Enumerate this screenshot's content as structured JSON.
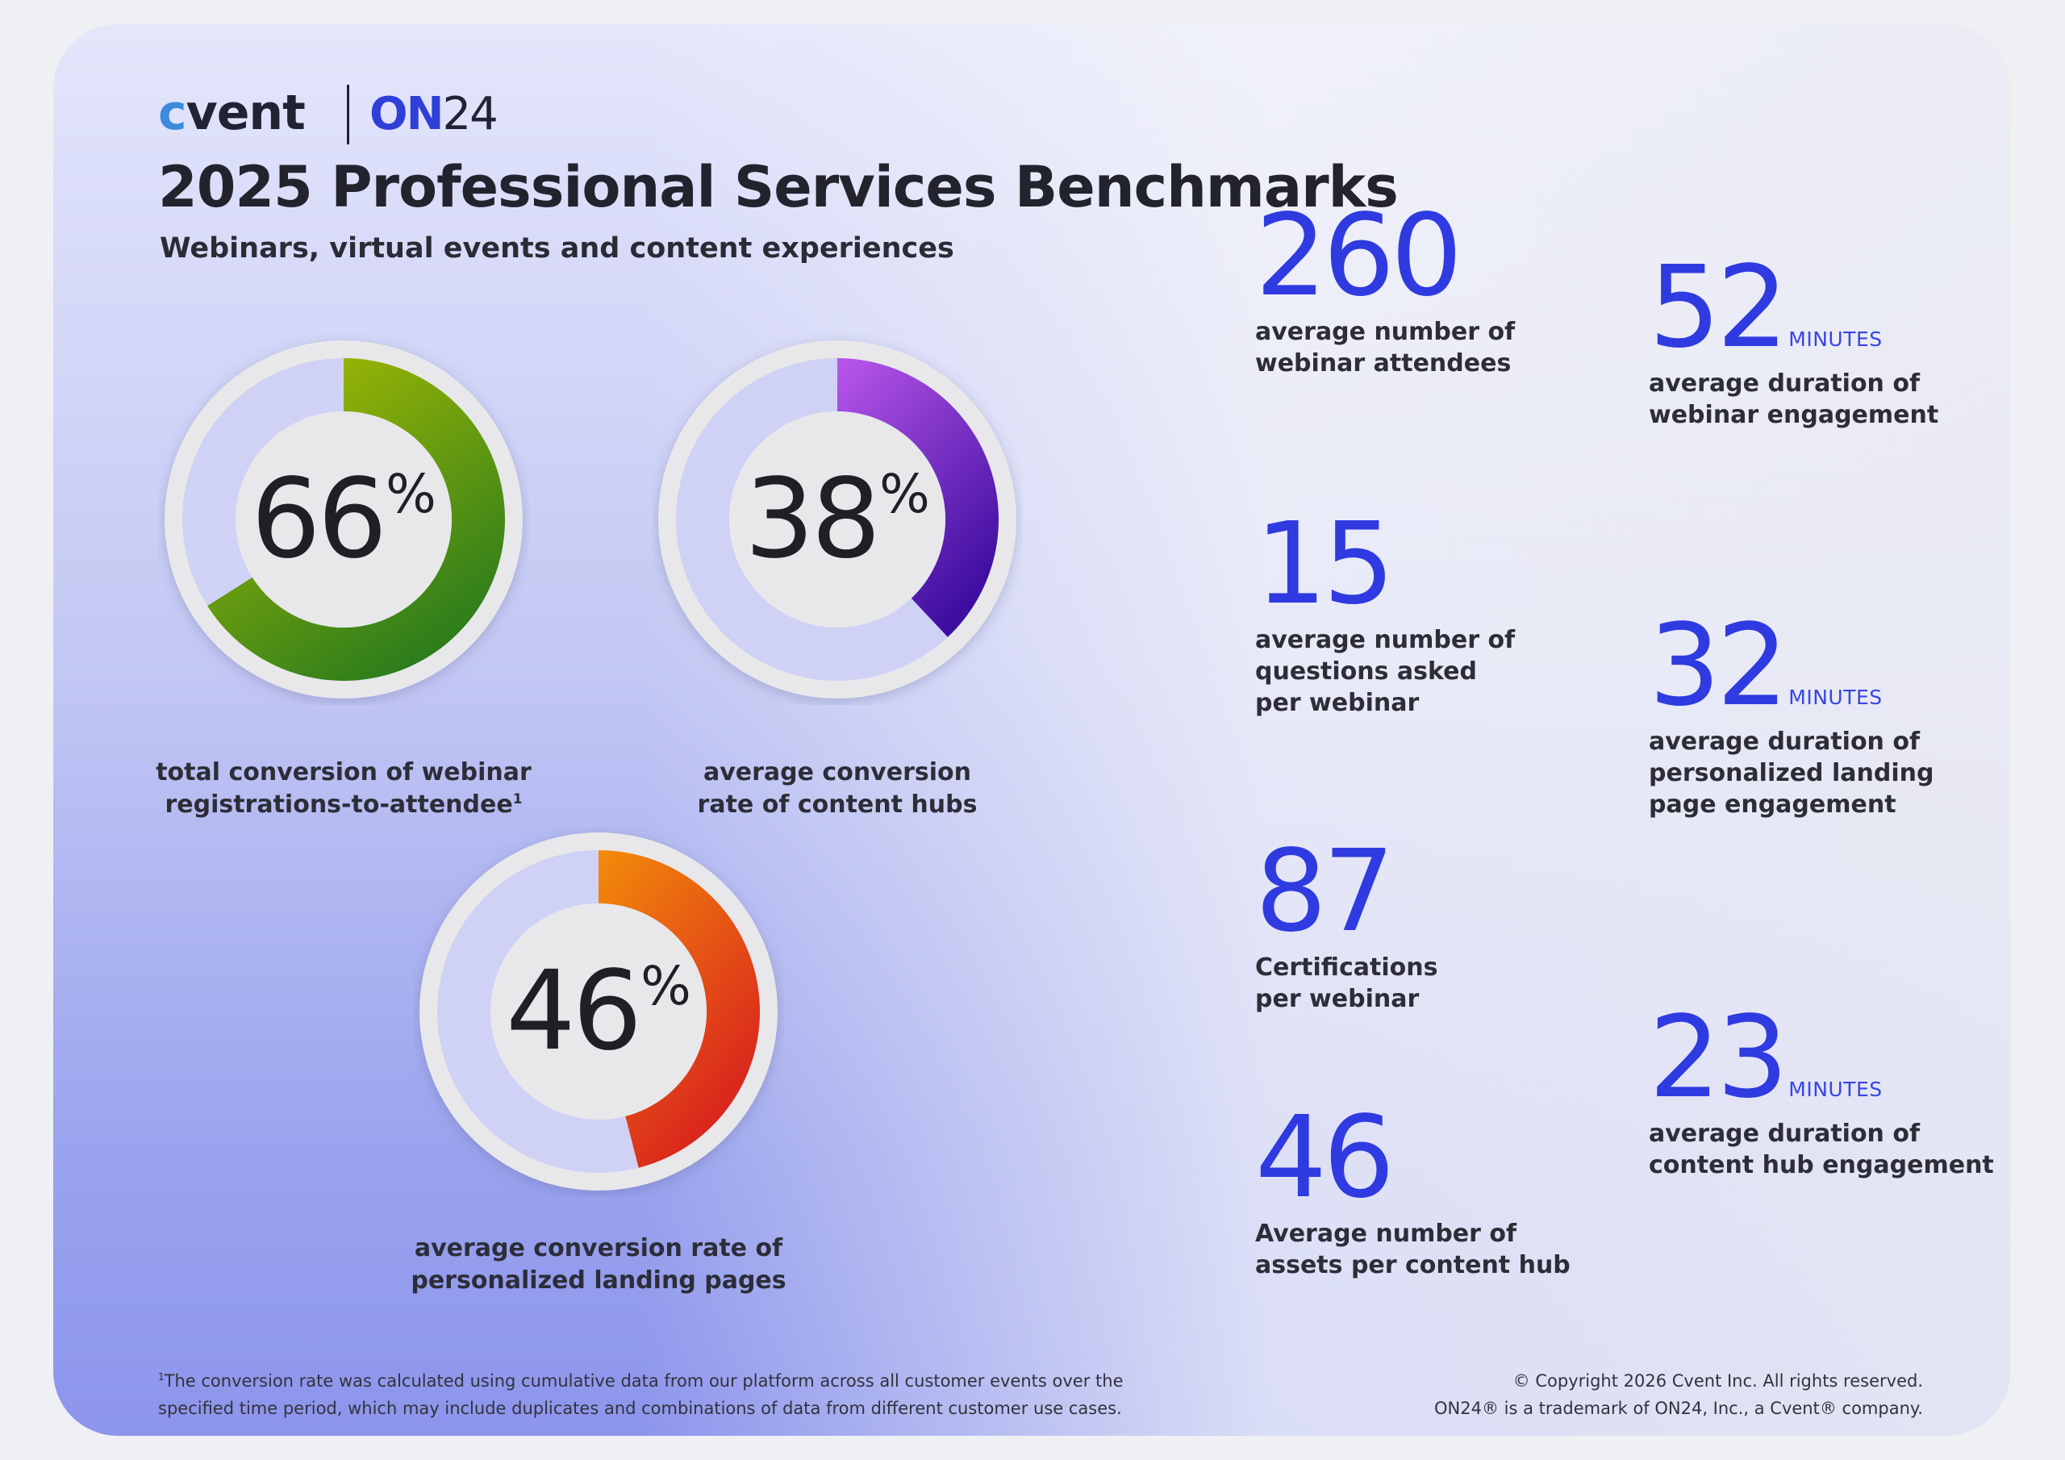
{
  "brand": {
    "cvent_logo": "cvent",
    "on24_logo_on": "ON",
    "on24_logo_num": "24"
  },
  "header": {
    "title": "2025 Professional Services Benchmarks",
    "subtitle": "Webinars, virtual events and content experiences"
  },
  "donuts": [
    {
      "value": "66",
      "unit": "%",
      "fraction": 0.66,
      "color_start": "#b0c000",
      "color_end": "#2d7d1c",
      "label_line1": "total conversion of webinar",
      "label_line2": "registrations-to-attendee",
      "label_sup": "1"
    },
    {
      "value": "38",
      "unit": "%",
      "fraction": 0.38,
      "color_start": "#b957ea",
      "color_end": "#3e0ea0",
      "label_line1": "average conversion",
      "label_line2": "rate of content hubs"
    },
    {
      "value": "46",
      "unit": "%",
      "fraction": 0.46,
      "color_start": "#f38c0a",
      "color_end": "#d8201e",
      "label_line1": "average conversion rate of",
      "label_line2": "personalized landing pages"
    }
  ],
  "stats_left": [
    {
      "value": "260",
      "lines": [
        "average number of",
        "webinar attendees"
      ]
    },
    {
      "value": "15",
      "lines": [
        "average number of",
        "questions asked",
        "per webinar"
      ]
    },
    {
      "value": "87",
      "lines": [
        "Certifications",
        "per webinar"
      ]
    },
    {
      "value": "46",
      "lines": [
        "Average number of",
        "assets per content hub"
      ]
    }
  ],
  "stats_right": [
    {
      "value": "52",
      "unit": "MINUTES",
      "lines": [
        "average duration of",
        "webinar engagement"
      ]
    },
    {
      "value": "32",
      "unit": "MINUTES",
      "lines": [
        "average duration of",
        "personalized landing",
        "page engagement"
      ]
    },
    {
      "value": "23",
      "unit": "MINUTES",
      "lines": [
        "average duration of",
        "content hub engagement"
      ]
    }
  ],
  "footnote": {
    "sup": "1",
    "line1": "The conversion rate was calculated using cumulative data from our platform across all customer events over the",
    "line2": "specified time period, which may include duplicates and combinations of data from different customer use cases."
  },
  "copyright": {
    "line1": "© Copyright 2026 Cvent Inc. All rights reserved.",
    "line2": "ON24® is a trademark of ON24, Inc., a Cvent® company."
  },
  "colors": {
    "accent_blue": "#2f3be0",
    "ring_gray": "#e8e8ea"
  }
}
